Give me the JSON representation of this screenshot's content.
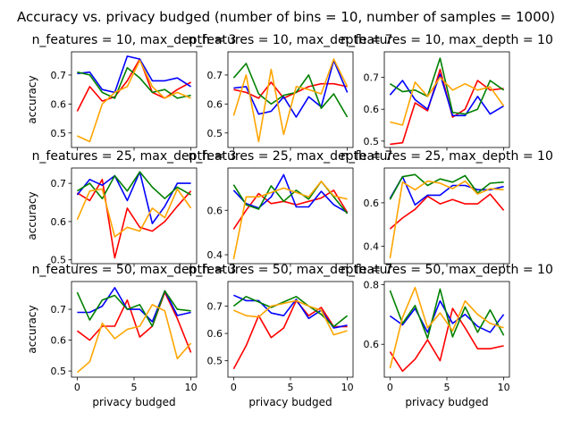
{
  "figure": {
    "suptitle": "Accuracy vs. privacy budged (number of bins = 10, number of samples = 1000)"
  },
  "colors": {
    "red": "#ff0000",
    "blue": "#0000ff",
    "green": "#008000",
    "orange": "#ffa500"
  },
  "chart_data": [
    {
      "type": "line",
      "title": "n_features = 10, max_depth = 3",
      "xlabel": "",
      "ylabel": "accuracy",
      "xlim": [
        -0.5,
        10.5
      ],
      "ylim": [
        0.45,
        0.78
      ],
      "xticks": [
        0,
        5,
        10
      ],
      "xtick_labels": [
        "",
        "",
        ""
      ],
      "yticks": [
        0.5,
        0.6,
        0.7
      ],
      "ytick_labels": [
        "0.5",
        "0.6",
        "0.7"
      ],
      "grid": false,
      "x": [
        0,
        1.1,
        2.2,
        3.3,
        4.4,
        5.5,
        6.6,
        7.7,
        8.8,
        10
      ],
      "series": [
        {
          "color": "red",
          "values": [
            0.575,
            0.66,
            0.61,
            0.625,
            0.68,
            0.755,
            0.64,
            0.62,
            0.65,
            0.675
          ]
        },
        {
          "color": "blue",
          "values": [
            0.705,
            0.71,
            0.65,
            0.64,
            0.765,
            0.755,
            0.68,
            0.68,
            0.69,
            0.66
          ]
        },
        {
          "color": "green",
          "values": [
            0.71,
            0.7,
            0.64,
            0.62,
            0.725,
            0.69,
            0.64,
            0.65,
            0.62,
            0.63
          ]
        },
        {
          "color": "orange",
          "values": [
            0.49,
            0.47,
            0.6,
            0.64,
            0.66,
            0.75,
            0.66,
            0.62,
            0.64,
            0.62
          ]
        }
      ]
    },
    {
      "type": "line",
      "title": "n_features = 10, max_depth = 7",
      "xlabel": "",
      "ylabel": "",
      "xlim": [
        -0.5,
        10.5
      ],
      "ylim": [
        0.45,
        0.78
      ],
      "xticks": [
        0,
        5,
        10
      ],
      "xtick_labels": [
        "",
        "",
        ""
      ],
      "yticks": [
        0.5,
        0.6,
        0.7
      ],
      "ytick_labels": [
        "0.5",
        "0.6",
        "0.7"
      ],
      "grid": false,
      "x": [
        0,
        1.1,
        2.2,
        3.3,
        4.4,
        5.5,
        6.6,
        7.7,
        8.8,
        10
      ],
      "series": [
        {
          "color": "red",
          "values": [
            0.65,
            0.64,
            0.62,
            0.675,
            0.62,
            0.64,
            0.66,
            0.67,
            0.67,
            0.66
          ]
        },
        {
          "color": "blue",
          "values": [
            0.655,
            0.66,
            0.565,
            0.575,
            0.625,
            0.555,
            0.625,
            0.59,
            0.75,
            0.64
          ]
        },
        {
          "color": "green",
          "values": [
            0.69,
            0.74,
            0.635,
            0.6,
            0.63,
            0.64,
            0.7,
            0.585,
            0.635,
            0.555
          ]
        },
        {
          "color": "orange",
          "values": [
            0.56,
            0.7,
            0.47,
            0.72,
            0.495,
            0.66,
            0.65,
            0.635,
            0.755,
            0.66
          ]
        }
      ]
    },
    {
      "type": "line",
      "title": "n_features = 10, max_depth = 10",
      "xlabel": "",
      "ylabel": "",
      "xlim": [
        -0.5,
        10.5
      ],
      "ylim": [
        0.48,
        0.78
      ],
      "xticks": [
        0,
        5,
        10
      ],
      "xtick_labels": [
        "",
        "",
        ""
      ],
      "yticks": [
        0.5,
        0.6,
        0.7
      ],
      "ytick_labels": [
        "0.5",
        "0.6",
        "0.7"
      ],
      "grid": false,
      "x": [
        0,
        1.1,
        2.2,
        3.3,
        4.4,
        5.5,
        6.6,
        7.7,
        8.8,
        10
      ],
      "series": [
        {
          "color": "red",
          "values": [
            0.49,
            0.495,
            0.62,
            0.595,
            0.725,
            0.575,
            0.6,
            0.69,
            0.66,
            0.665
          ]
        },
        {
          "color": "blue",
          "values": [
            0.645,
            0.69,
            0.63,
            0.6,
            0.71,
            0.58,
            0.58,
            0.64,
            0.585,
            0.61
          ]
        },
        {
          "color": "green",
          "values": [
            0.68,
            0.655,
            0.66,
            0.64,
            0.76,
            0.59,
            0.585,
            0.6,
            0.69,
            0.66
          ]
        },
        {
          "color": "orange",
          "values": [
            0.56,
            0.55,
            0.685,
            0.64,
            0.7,
            0.66,
            0.68,
            0.66,
            0.67,
            0.61
          ]
        }
      ]
    },
    {
      "type": "line",
      "title": "n_features = 25, max_depth = 3",
      "xlabel": "",
      "ylabel": "accuracy",
      "xlim": [
        -0.5,
        10.5
      ],
      "ylim": [
        0.49,
        0.74
      ],
      "xticks": [
        0,
        5,
        10
      ],
      "xtick_labels": [
        "",
        "",
        ""
      ],
      "yticks": [
        0.5,
        0.6,
        0.7
      ],
      "ytick_labels": [
        "0.5",
        "0.6",
        "0.7"
      ],
      "grid": false,
      "x": [
        0,
        1.1,
        2.2,
        3.3,
        4.4,
        5.5,
        6.6,
        7.7,
        8.8,
        10
      ],
      "series": [
        {
          "color": "red",
          "values": [
            0.675,
            0.655,
            0.71,
            0.505,
            0.635,
            0.585,
            0.575,
            0.6,
            0.64,
            0.68
          ]
        },
        {
          "color": "blue",
          "values": [
            0.67,
            0.71,
            0.695,
            0.72,
            0.655,
            0.73,
            0.595,
            0.64,
            0.7,
            0.7
          ]
        },
        {
          "color": "green",
          "values": [
            0.68,
            0.7,
            0.66,
            0.72,
            0.68,
            0.73,
            0.69,
            0.66,
            0.69,
            0.67
          ]
        },
        {
          "color": "orange",
          "values": [
            0.605,
            0.68,
            0.685,
            0.56,
            0.585,
            0.575,
            0.635,
            0.61,
            0.685,
            0.635
          ]
        }
      ]
    },
    {
      "type": "line",
      "title": "n_features = 25, max_depth = 7",
      "xlabel": "",
      "ylabel": "",
      "xlim": [
        -0.5,
        10.5
      ],
      "ylim": [
        0.36,
        0.79
      ],
      "xticks": [
        0,
        5,
        10
      ],
      "xtick_labels": [
        "",
        "",
        ""
      ],
      "yticks": [
        0.4,
        0.6
      ],
      "ytick_labels": [
        "0.4",
        "0.6"
      ],
      "grid": false,
      "x": [
        0,
        1.1,
        2.2,
        3.3,
        4.4,
        5.5,
        6.6,
        7.7,
        8.8,
        10
      ],
      "series": [
        {
          "color": "red",
          "values": [
            0.515,
            0.6,
            0.675,
            0.63,
            0.64,
            0.625,
            0.64,
            0.655,
            0.69,
            0.59
          ]
        },
        {
          "color": "blue",
          "values": [
            0.69,
            0.63,
            0.61,
            0.66,
            0.76,
            0.615,
            0.615,
            0.685,
            0.625,
            0.59
          ]
        },
        {
          "color": "green",
          "values": [
            0.715,
            0.625,
            0.605,
            0.71,
            0.64,
            0.69,
            0.65,
            0.73,
            0.66,
            0.585
          ]
        },
        {
          "color": "orange",
          "values": [
            0.38,
            0.66,
            0.66,
            0.68,
            0.7,
            0.68,
            0.66,
            0.73,
            0.665,
            0.65
          ]
        }
      ]
    },
    {
      "type": "line",
      "title": "n_features = 25, max_depth = 10",
      "xlabel": "",
      "ylabel": "",
      "xlim": [
        -0.5,
        10.5
      ],
      "ylim": [
        0.32,
        0.76
      ],
      "xticks": [
        0,
        5,
        10
      ],
      "xtick_labels": [
        "",
        "",
        ""
      ],
      "yticks": [
        0.4,
        0.6
      ],
      "ytick_labels": [
        "0.4",
        "0.6"
      ],
      "grid": false,
      "x": [
        0,
        1.1,
        2.2,
        3.3,
        4.4,
        5.5,
        6.6,
        7.7,
        8.8,
        10
      ],
      "series": [
        {
          "color": "red",
          "values": [
            0.48,
            0.53,
            0.57,
            0.63,
            0.595,
            0.615,
            0.595,
            0.595,
            0.64,
            0.565
          ]
        },
        {
          "color": "blue",
          "values": [
            0.62,
            0.72,
            0.59,
            0.635,
            0.635,
            0.68,
            0.68,
            0.66,
            0.66,
            0.675
          ]
        },
        {
          "color": "green",
          "values": [
            0.615,
            0.72,
            0.73,
            0.68,
            0.71,
            0.695,
            0.725,
            0.645,
            0.69,
            0.695
          ]
        },
        {
          "color": "orange",
          "values": [
            0.345,
            0.695,
            0.66,
            0.7,
            0.69,
            0.665,
            0.7,
            0.64,
            0.665,
            0.66
          ]
        }
      ]
    },
    {
      "type": "line",
      "title": "n_features = 50, max_depth = 3",
      "xlabel": "privacy budged",
      "ylabel": "accuracy",
      "xlim": [
        -0.5,
        10.5
      ],
      "ylim": [
        0.48,
        0.79
      ],
      "xticks": [
        0,
        5,
        10
      ],
      "xtick_labels": [
        "0",
        "5",
        "10"
      ],
      "yticks": [
        0.5,
        0.6,
        0.7
      ],
      "ytick_labels": [
        "0.5",
        "0.6",
        "0.7"
      ],
      "grid": false,
      "x": [
        0,
        1.1,
        2.2,
        3.3,
        4.4,
        5.5,
        6.6,
        7.7,
        8.8,
        10
      ],
      "series": [
        {
          "color": "red",
          "values": [
            0.63,
            0.6,
            0.645,
            0.645,
            0.73,
            0.61,
            0.645,
            0.755,
            0.67,
            0.56
          ]
        },
        {
          "color": "blue",
          "values": [
            0.69,
            0.69,
            0.71,
            0.77,
            0.7,
            0.7,
            0.66,
            0.76,
            0.68,
            0.69
          ]
        },
        {
          "color": "green",
          "values": [
            0.755,
            0.665,
            0.73,
            0.745,
            0.7,
            0.715,
            0.645,
            0.76,
            0.7,
            0.695
          ]
        },
        {
          "color": "orange",
          "values": [
            0.495,
            0.53,
            0.655,
            0.605,
            0.635,
            0.645,
            0.715,
            0.695,
            0.54,
            0.59
          ]
        }
      ]
    },
    {
      "type": "line",
      "title": "n_features = 50, max_depth = 7",
      "xlabel": "privacy budged",
      "ylabel": "",
      "xlim": [
        -0.5,
        10.5
      ],
      "ylim": [
        0.44,
        0.79
      ],
      "xticks": [
        0,
        5,
        10
      ],
      "xtick_labels": [
        "0",
        "5",
        "10"
      ],
      "yticks": [
        0.5,
        0.6,
        0.7
      ],
      "ytick_labels": [
        "0.5",
        "0.6",
        "0.7"
      ],
      "grid": false,
      "x": [
        0,
        1.1,
        2.2,
        3.3,
        4.4,
        5.5,
        6.6,
        7.7,
        8.8,
        10
      ],
      "series": [
        {
          "color": "red",
          "values": [
            0.47,
            0.555,
            0.665,
            0.585,
            0.62,
            0.72,
            0.665,
            0.695,
            0.625,
            0.625
          ]
        },
        {
          "color": "blue",
          "values": [
            0.74,
            0.72,
            0.72,
            0.675,
            0.665,
            0.725,
            0.655,
            0.685,
            0.62,
            0.63
          ]
        },
        {
          "color": "green",
          "values": [
            0.7,
            0.735,
            0.715,
            0.695,
            0.715,
            0.735,
            0.7,
            0.67,
            0.625,
            0.665
          ]
        },
        {
          "color": "orange",
          "values": [
            0.685,
            0.665,
            0.66,
            0.7,
            0.71,
            0.72,
            0.7,
            0.685,
            0.595,
            0.61
          ]
        }
      ]
    },
    {
      "type": "line",
      "title": "n_features = 50, max_depth = 10",
      "xlabel": "privacy budged",
      "ylabel": "",
      "xlim": [
        -0.5,
        10.5
      ],
      "ylim": [
        0.49,
        0.81
      ],
      "xticks": [
        0,
        5,
        10
      ],
      "xtick_labels": [
        "0",
        "5",
        "10"
      ],
      "yticks": [
        0.6,
        0.8
      ],
      "ytick_labels": [
        "0.6",
        "0.8"
      ],
      "grid": false,
      "x": [
        0,
        1.1,
        2.2,
        3.3,
        4.4,
        5.5,
        6.6,
        7.7,
        8.8,
        10
      ],
      "series": [
        {
          "color": "red",
          "values": [
            0.575,
            0.51,
            0.55,
            0.615,
            0.545,
            0.72,
            0.655,
            0.585,
            0.585,
            0.595
          ]
        },
        {
          "color": "blue",
          "values": [
            0.695,
            0.665,
            0.72,
            0.64,
            0.745,
            0.67,
            0.7,
            0.66,
            0.64,
            0.7
          ]
        },
        {
          "color": "green",
          "values": [
            0.78,
            0.67,
            0.73,
            0.62,
            0.785,
            0.625,
            0.725,
            0.64,
            0.715,
            0.63
          ]
        },
        {
          "color": "orange",
          "values": [
            0.52,
            0.69,
            0.79,
            0.655,
            0.705,
            0.645,
            0.745,
            0.7,
            0.67,
            0.655
          ]
        }
      ]
    }
  ]
}
